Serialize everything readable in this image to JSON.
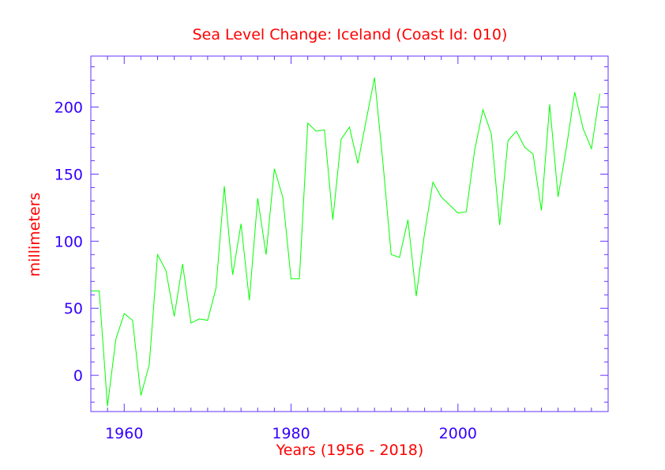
{
  "chart_data": {
    "type": "line",
    "title": "Sea Level Change: Iceland (Coast Id: 010)",
    "xlabel": "Years (1956 - 2018)",
    "ylabel": "millimeters",
    "xlim": [
      1956,
      2018
    ],
    "ylim": [
      -27,
      238
    ],
    "xticks": [
      1960,
      1980,
      2000
    ],
    "yticks": [
      0,
      50,
      100,
      150,
      200
    ],
    "grid": false,
    "colors": {
      "line": "#00ff00",
      "axes": "#6633ff",
      "text": "#ff0000",
      "ticklabels": "#3300ff"
    },
    "series": [
      {
        "x": [
          1956,
          1957,
          1958,
          1959,
          1960,
          1961,
          1962,
          1963,
          1964,
          1965,
          1966,
          1967,
          1968,
          1969,
          1970,
          1971,
          1972,
          1973,
          1974,
          1975,
          1976,
          1977,
          1978,
          1979,
          1980,
          1981,
          1982,
          1983,
          1984,
          1985,
          1986,
          1987,
          1988,
          1989,
          1990,
          1991,
          1992,
          1993,
          1994,
          1995,
          1996,
          1997,
          1998,
          1999,
          2000,
          2001,
          2002,
          2003,
          2004,
          2005,
          2006,
          2007,
          2008,
          2009,
          2010,
          2011,
          2012,
          2013,
          2014,
          2015,
          2016,
          2017
        ],
        "values": [
          63,
          63,
          -23,
          27,
          46,
          41,
          -15,
          8,
          90,
          78,
          44,
          83,
          39,
          42,
          41,
          65,
          141,
          75,
          113,
          56,
          132,
          90,
          154,
          133,
          72,
          72,
          188,
          182,
          183,
          116,
          176,
          185,
          158,
          190,
          222,
          159,
          90,
          88,
          116,
          59,
          106,
          144,
          133,
          127,
          121,
          122,
          168,
          198,
          180,
          112,
          175,
          182,
          170,
          165,
          123,
          202,
          133,
          170,
          211,
          184,
          169,
          210
        ]
      }
    ]
  }
}
